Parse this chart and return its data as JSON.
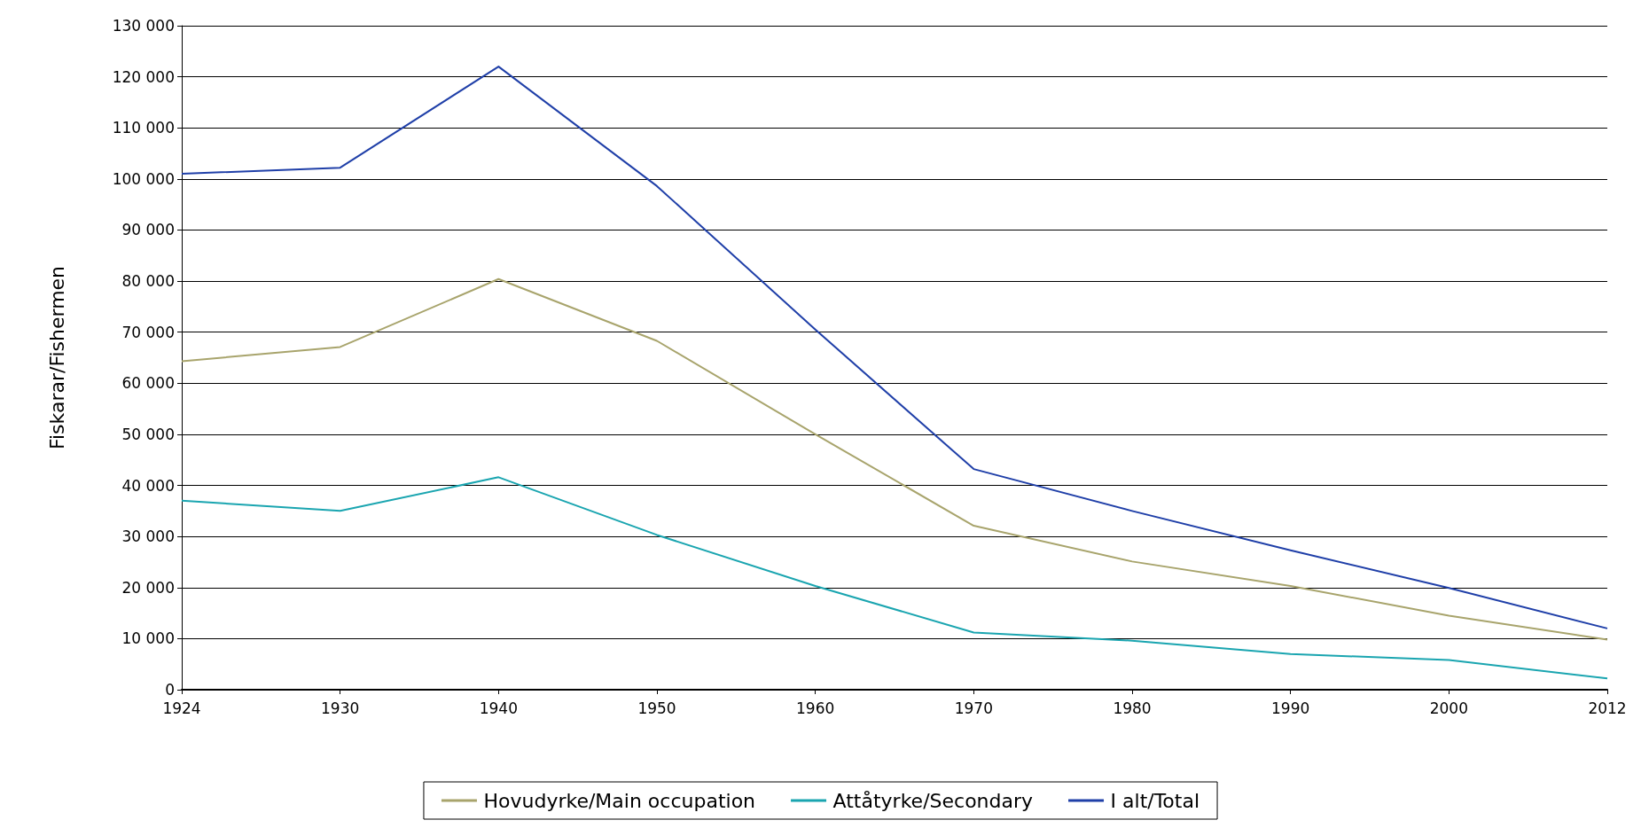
{
  "chart_data": {
    "type": "line",
    "ylabel": "Fiskarar/Fishermen",
    "categories": [
      "1924",
      "1930",
      "1940",
      "1950",
      "1960",
      "1970",
      "1980",
      "1990",
      "2000",
      "2012"
    ],
    "series": [
      {
        "name": "Hovudyrke/Main occupation",
        "color": "#a8a46c",
        "values": [
          64300,
          67100,
          80400,
          68300,
          50000,
          32100,
          25100,
          20300,
          14500,
          9800
        ]
      },
      {
        "name": "Attåtyrke/Secondary",
        "color": "#1aa5b0",
        "values": [
          37000,
          35000,
          41600,
          30300,
          20300,
          11200,
          9600,
          7000,
          5800,
          2200
        ]
      },
      {
        "name": "I alt/Total",
        "color": "#1f3fa8",
        "values": [
          101000,
          102200,
          122000,
          98600,
          70500,
          43200,
          35000,
          27300,
          19900,
          12000
        ]
      }
    ],
    "ylim": [
      0,
      130000
    ],
    "yticks": [
      0,
      {
        "value": 10000,
        "label": "10 000"
      },
      {
        "value": 20000,
        "label": "20 000"
      },
      {
        "value": 30000,
        "label": "30 000"
      },
      {
        "value": 40000,
        "label": "40 000"
      },
      {
        "value": 50000,
        "label": "50 000"
      },
      {
        "value": 60000,
        "label": "60 000"
      },
      {
        "value": 70000,
        "label": "70 000"
      },
      {
        "value": 80000,
        "label": "80 000"
      },
      {
        "value": 90000,
        "label": "90 000"
      },
      {
        "value": 100000,
        "label": "100 000"
      },
      {
        "value": 110000,
        "label": "110 000"
      },
      {
        "value": 120000,
        "label": "120 000"
      },
      {
        "value": 130000,
        "label": "130 000"
      }
    ],
    "grid": "y",
    "legend": "bottom",
    "marker": "none",
    "line_style": "solid"
  }
}
